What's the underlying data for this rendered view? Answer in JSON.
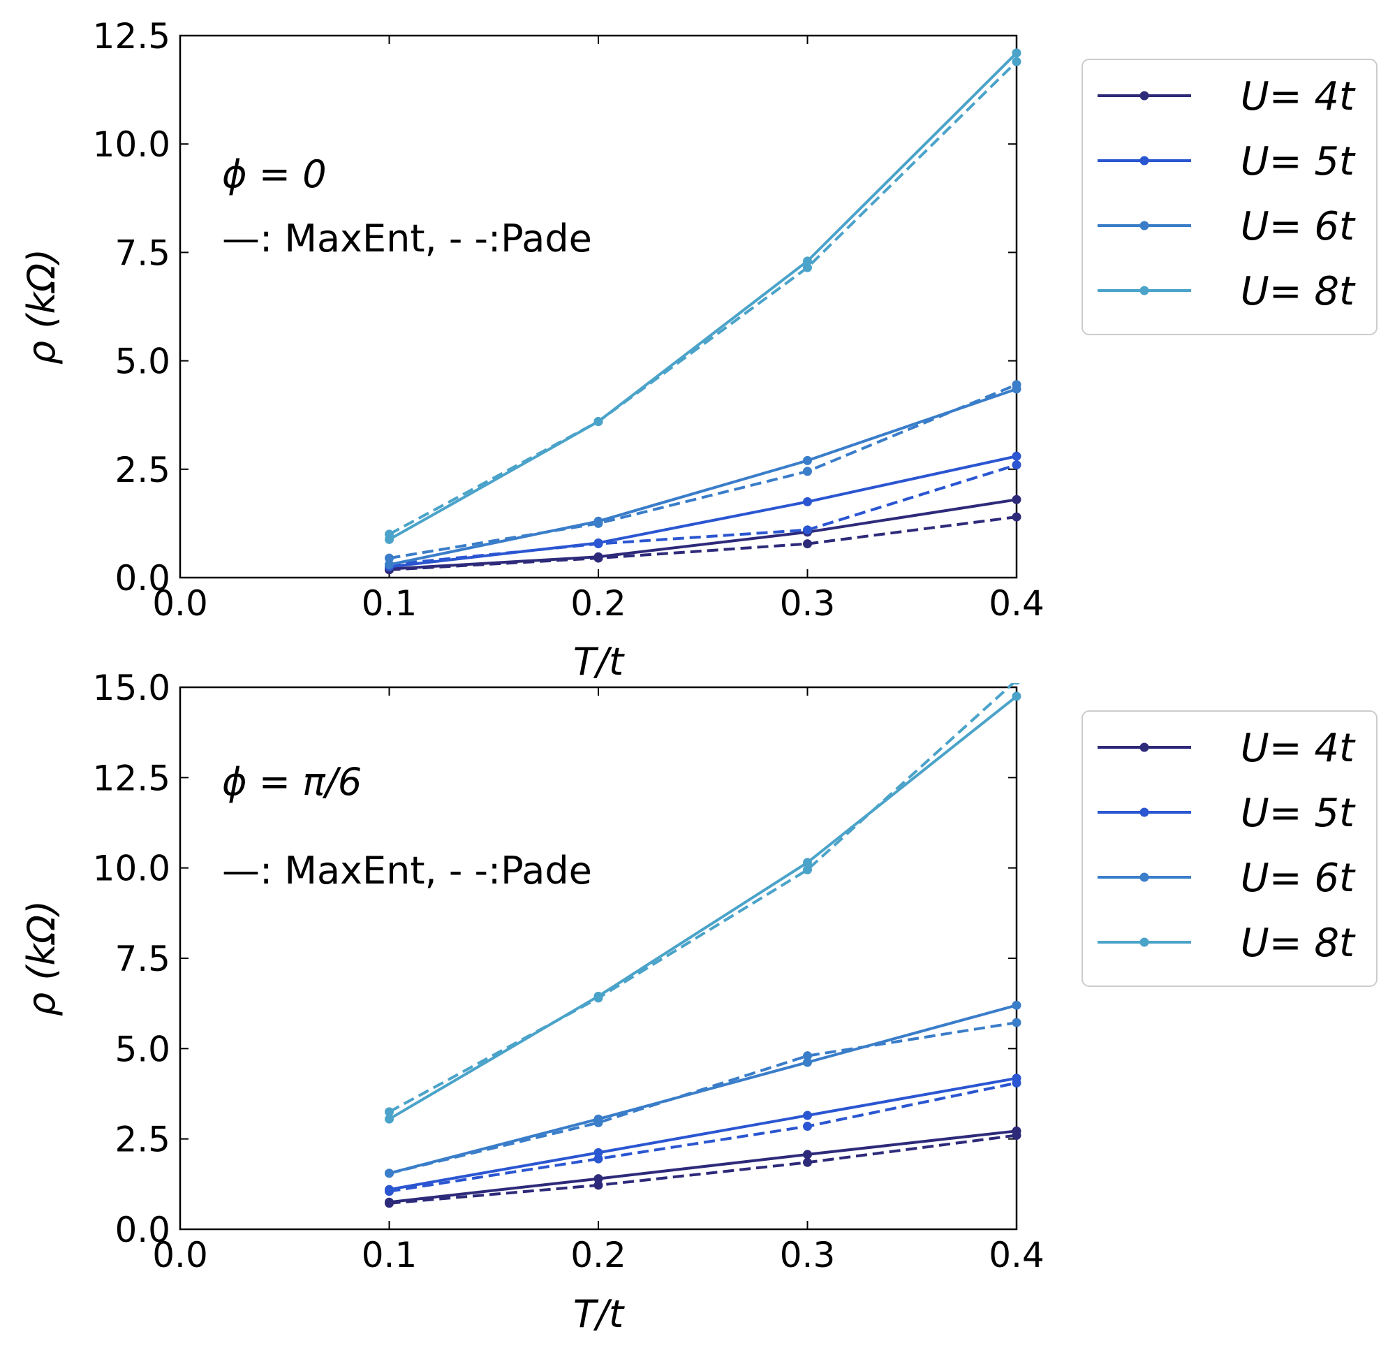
{
  "chart_data": [
    {
      "type": "line",
      "xlabel": "T/t",
      "ylabel": "ρ (kΩ)",
      "xlim": [
        0.0,
        0.4
      ],
      "ylim": [
        0.0,
        12.5
      ],
      "xticks": [
        "0.0",
        "0.1",
        "0.2",
        "0.3",
        "0.4"
      ],
      "yticks": [
        "0.0",
        "2.5",
        "5.0",
        "7.5",
        "10.0",
        "12.5"
      ],
      "grid": false,
      "legend_position": "outside-right",
      "annotations": [
        "ϕ = 0",
        "—: MaxEnt, - -:Pade"
      ],
      "x": [
        0.1,
        0.2,
        0.3,
        0.4
      ],
      "series": [
        {
          "name": "U= 4t",
          "method": "MaxEnt",
          "color": "#2e2a7a",
          "values": [
            0.2,
            0.48,
            1.05,
            1.8
          ]
        },
        {
          "name": "U= 4t",
          "method": "Pade",
          "color": "#2e2a7a",
          "values": [
            0.18,
            0.45,
            0.78,
            1.4
          ]
        },
        {
          "name": "U= 5t",
          "method": "MaxEnt",
          "color": "#2b56d1",
          "values": [
            0.25,
            0.8,
            1.75,
            2.8
          ]
        },
        {
          "name": "U= 5t",
          "method": "Pade",
          "color": "#2b56d1",
          "values": [
            0.3,
            0.78,
            1.1,
            2.6
          ]
        },
        {
          "name": "U= 6t",
          "method": "MaxEnt",
          "color": "#3a7dc9",
          "values": [
            0.3,
            1.3,
            2.7,
            4.35
          ]
        },
        {
          "name": "U= 6t",
          "method": "Pade",
          "color": "#3a7dc9",
          "values": [
            0.45,
            1.25,
            2.45,
            4.45
          ]
        },
        {
          "name": "U= 8t",
          "method": "MaxEnt",
          "color": "#4ba3c9",
          "values": [
            0.88,
            3.6,
            7.3,
            12.1
          ]
        },
        {
          "name": "U= 8t",
          "method": "Pade",
          "color": "#4ba3c9",
          "values": [
            1.0,
            3.6,
            7.15,
            11.9
          ]
        }
      ]
    },
    {
      "type": "line",
      "xlabel": "T/t",
      "ylabel": "ρ (kΩ)",
      "xlim": [
        0.0,
        0.4
      ],
      "ylim": [
        0.0,
        15.0
      ],
      "xticks": [
        "0.0",
        "0.1",
        "0.2",
        "0.3",
        "0.4"
      ],
      "yticks": [
        "0.0",
        "2.5",
        "5.0",
        "7.5",
        "10.0",
        "12.5",
        "15.0"
      ],
      "grid": false,
      "legend_position": "outside-right",
      "annotations": [
        "ϕ = π/6",
        "—: MaxEnt, - -:Pade"
      ],
      "x": [
        0.1,
        0.2,
        0.3,
        0.4
      ],
      "series": [
        {
          "name": "U= 4t",
          "method": "MaxEnt",
          "color": "#2e2a7a",
          "values": [
            0.75,
            1.4,
            2.07,
            2.72
          ]
        },
        {
          "name": "U= 4t",
          "method": "Pade",
          "color": "#2e2a7a",
          "values": [
            0.72,
            1.22,
            1.85,
            2.6
          ]
        },
        {
          "name": "U= 5t",
          "method": "MaxEnt",
          "color": "#2b56d1",
          "values": [
            1.1,
            2.12,
            3.15,
            4.18
          ]
        },
        {
          "name": "U= 5t",
          "method": "Pade",
          "color": "#2b56d1",
          "values": [
            1.05,
            1.95,
            2.85,
            4.05
          ]
        },
        {
          "name": "U= 6t",
          "method": "MaxEnt",
          "color": "#3a7dc9",
          "values": [
            1.55,
            3.05,
            4.62,
            6.2
          ]
        },
        {
          "name": "U= 6t",
          "method": "Pade",
          "color": "#3a7dc9",
          "values": [
            1.55,
            2.95,
            4.8,
            5.72
          ]
        },
        {
          "name": "U= 8t",
          "method": "MaxEnt",
          "color": "#4ba3c9",
          "values": [
            3.05,
            6.45,
            10.15,
            14.75
          ]
        },
        {
          "name": "U= 8t",
          "method": "Pade",
          "color": "#4ba3c9",
          "values": [
            3.25,
            6.4,
            9.95,
            15.2
          ]
        }
      ]
    }
  ],
  "legends": [
    {
      "entries": [
        {
          "label": "U= 4t",
          "color": "#2e2a7a"
        },
        {
          "label": "U= 5t",
          "color": "#2b56d1"
        },
        {
          "label": "U= 6t",
          "color": "#3a7dc9"
        },
        {
          "label": "U= 8t",
          "color": "#4ba3c9"
        }
      ]
    },
    {
      "entries": [
        {
          "label": "U= 4t",
          "color": "#2e2a7a"
        },
        {
          "label": "U= 5t",
          "color": "#2b56d1"
        },
        {
          "label": "U= 6t",
          "color": "#3a7dc9"
        },
        {
          "label": "U= 8t",
          "color": "#4ba3c9"
        }
      ]
    }
  ]
}
